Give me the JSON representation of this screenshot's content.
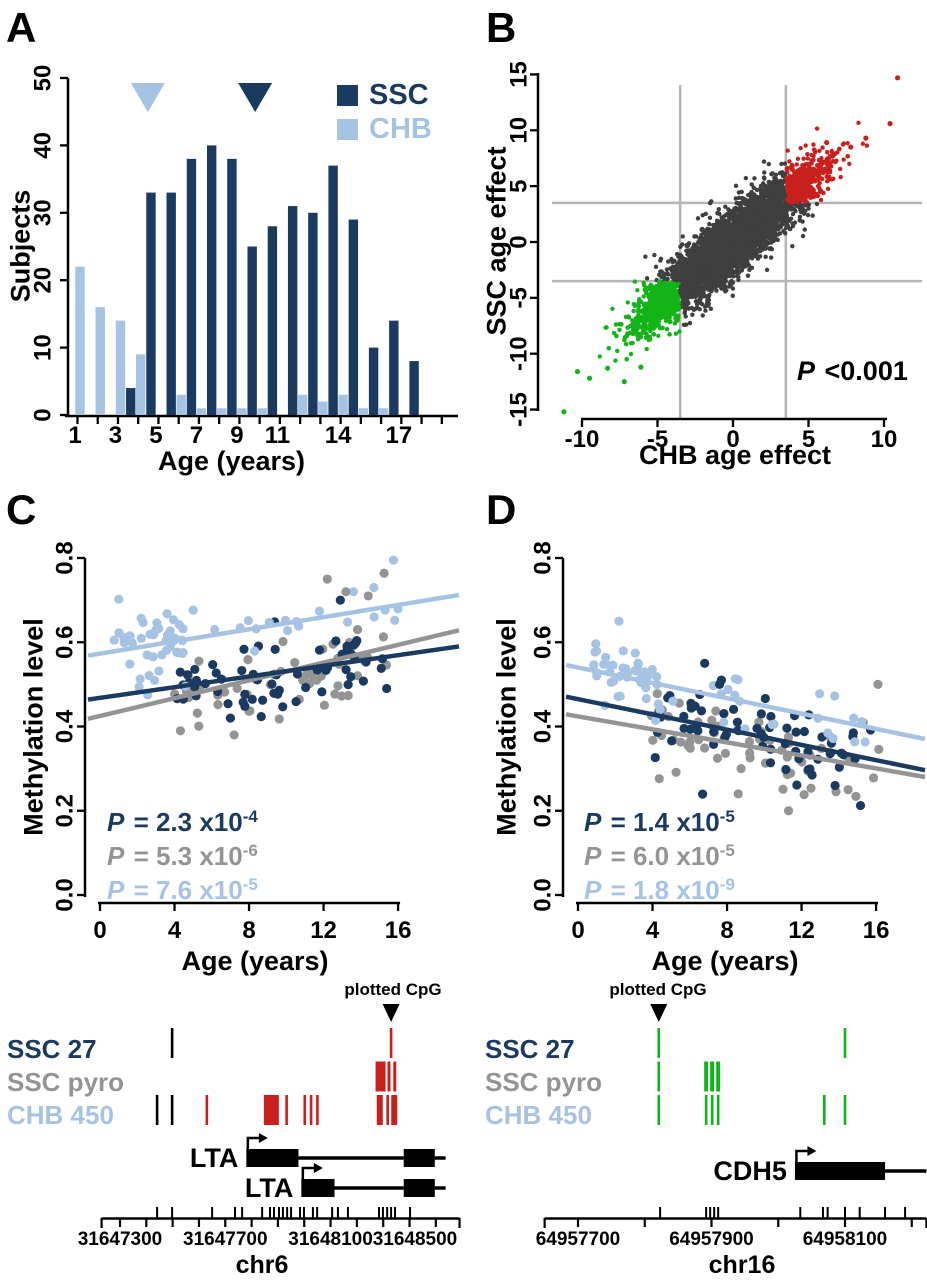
{
  "colors": {
    "navy": "#1b3a5f",
    "lightblue": "#a6c3e4",
    "gray": "#949494",
    "cloud": "#3f3f3f",
    "red": "#c9201e",
    "green": "#12b417",
    "grid": "#b5b5b5",
    "black": "#000000"
  },
  "panel_letters": {
    "A": "A",
    "B": "B",
    "C": "C",
    "D": "D"
  },
  "chart_data": [
    {
      "type": "bar",
      "panel": "A",
      "xlabel": "Age (years)",
      "ylabel": "Subjects",
      "ylim": [
        0,
        50
      ],
      "yticks": [
        0,
        10,
        20,
        30,
        40,
        50
      ],
      "categories": [
        1,
        2,
        3,
        4,
        5,
        6,
        7,
        8,
        9,
        10,
        11,
        12,
        13,
        14,
        15,
        16,
        17,
        18
      ],
      "xtick_labels": [
        [
          1,
          "1"
        ],
        [
          3,
          "3"
        ],
        [
          5,
          "5"
        ],
        [
          7,
          "7"
        ],
        [
          9,
          "9"
        ],
        [
          11,
          "11"
        ],
        [
          14,
          "14"
        ],
        [
          17,
          "17"
        ]
      ],
      "series": [
        {
          "name": "SSC",
          "color": "navy",
          "values": [
            0,
            0,
            0,
            4,
            33,
            33,
            38,
            40,
            38,
            25,
            28,
            31,
            30,
            37,
            29,
            10,
            14,
            8
          ]
        },
        {
          "name": "CHB",
          "color": "lightblue",
          "values": [
            22,
            16,
            14,
            9,
            0,
            3,
            1,
            1,
            1,
            1,
            0,
            3,
            2,
            3,
            1,
            1,
            0,
            0
          ]
        }
      ],
      "mean_markers": [
        {
          "age": 4.6,
          "color": "lightblue"
        },
        {
          "age": 9.9,
          "color": "navy"
        }
      ],
      "legend": [
        {
          "label": "SSC",
          "color": "navy"
        },
        {
          "label": "CHB",
          "color": "lightblue"
        }
      ]
    },
    {
      "type": "scatter",
      "panel": "B",
      "xlabel": "CHB age effect",
      "ylabel": "SSC age effect",
      "xlim": [
        -11.5,
        11
      ],
      "ylim": [
        -16,
        15.5
      ],
      "xticks": [
        -10,
        -5,
        0,
        5,
        10
      ],
      "yticks": [
        -15,
        -10,
        -5,
        0,
        5,
        10,
        15
      ],
      "threshold": 3.5,
      "annotation": {
        "p": "P",
        "text": " <0.001"
      },
      "cloud": {
        "seed": 20,
        "n": 4200,
        "t_sd": 2.7,
        "u_sd": 0.93,
        "xt": 0.93,
        "xu": -0.33,
        "yt": 1.06,
        "yu": 1.22
      },
      "green_extra": {
        "seed": 21,
        "n": 430,
        "mu": 3.9,
        "spread": 1.55,
        "d_sd": 0.75
      },
      "red_extra": {
        "seed": 22,
        "n": 235,
        "mu": 3.9,
        "spread": 1.2,
        "d_sd": 0.7
      },
      "extreme_red": [
        [
          10.9,
          14.7
        ],
        [
          10.4,
          10.6
        ],
        [
          8.8,
          9.3
        ],
        [
          7.8,
          8.5
        ],
        [
          6.2,
          8.9
        ]
      ],
      "extreme_green": [
        [
          -11.2,
          -15.2
        ],
        [
          -10.3,
          -11.6
        ],
        [
          -9.5,
          -12.2
        ],
        [
          -8.3,
          -11.3
        ],
        [
          -7.2,
          -12.5
        ],
        [
          -6.1,
          -11.2
        ]
      ]
    },
    {
      "type": "scatter-regression",
      "panel": "C",
      "xlabel": "Age (years)",
      "ylabel": "Methylation level",
      "xlim": [
        -0.7,
        19.2
      ],
      "ylim": [
        0,
        0.8
      ],
      "xticks": [
        0,
        4,
        8,
        12,
        16
      ],
      "ytick_labels": [
        "0.0",
        "0.2",
        "0.4",
        "0.6",
        "0.8"
      ],
      "series": [
        {
          "name": "SSC 27",
          "color": "navy",
          "line": {
            "y_at_0": 0.468,
            "y_at_18": 0.582
          },
          "points": [
            {
              "n": 62,
              "amin": 3.9,
              "amax": 15.6,
              "sd": 0.042,
              "seed": 31
            }
          ]
        },
        {
          "name": "SSC pyro",
          "color": "gray",
          "line": {
            "y_at_0": 0.425,
            "y_at_18": 0.615
          },
          "points": [
            {
              "n": 56,
              "amin": 3.9,
              "amax": 15.4,
              "sd": 0.048,
              "seed": 32
            }
          ]
        },
        {
          "name": "CHB 450",
          "color": "lightblue",
          "line": {
            "y_at_0": 0.573,
            "y_at_18": 0.703
          },
          "points": [
            {
              "n": 44,
              "amin": 0.7,
              "amax": 4.6,
              "sd": 0.05,
              "seed": 33
            },
            {
              "n": 17,
              "amin": 4.8,
              "amax": 16.3,
              "sd": 0.034,
              "seed": 34
            }
          ]
        }
      ],
      "outliers": [
        {
          "c": "lightblue",
          "x": 15.75,
          "y": 0.795
        },
        {
          "c": "lightblue",
          "x": 13.6,
          "y": 0.72
        },
        {
          "c": "lightblue",
          "x": 14.7,
          "y": 0.73
        },
        {
          "c": "gray",
          "x": 12.2,
          "y": 0.75
        },
        {
          "c": "gray",
          "x": 13.2,
          "y": 0.72
        },
        {
          "c": "gray",
          "x": 14.4,
          "y": 0.71
        },
        {
          "c": "navy",
          "x": 12.9,
          "y": 0.7
        },
        {
          "c": "gray",
          "x": 7.2,
          "y": 0.38
        },
        {
          "c": "navy",
          "x": 7.0,
          "y": 0.42
        }
      ],
      "pvalues": [
        {
          "color": "navy",
          "p": "P",
          "text": " = 2.3 x10",
          "exp": "-4"
        },
        {
          "color": "gray",
          "p": "P",
          "text": " = 5.3 x10",
          "exp": "-6"
        },
        {
          "color": "lightblue",
          "p": "P",
          "text": " = 7.6 x10",
          "exp": "-5"
        }
      ]
    },
    {
      "type": "scatter-regression",
      "panel": "D",
      "xlabel": "Age (years)",
      "ylabel": "Methylation level",
      "xlim": [
        -0.7,
        18.7
      ],
      "ylim": [
        0,
        0.8
      ],
      "xticks": [
        0,
        4,
        8,
        12,
        16
      ],
      "ytick_labels": [
        "0.0",
        "0.2",
        "0.4",
        "0.6",
        "0.8"
      ],
      "series": [
        {
          "name": "SSC 27",
          "color": "navy",
          "line": {
            "y_at_0": 0.465,
            "y_at_18": 0.302
          },
          "points": [
            {
              "n": 64,
              "amin": 3.9,
              "amax": 15.8,
              "sd": 0.045,
              "seed": 41
            }
          ]
        },
        {
          "name": "SSC pyro",
          "color": "gray",
          "line": {
            "y_at_0": 0.424,
            "y_at_18": 0.285
          },
          "points": [
            {
              "n": 58,
              "amin": 3.9,
              "amax": 16.2,
              "sd": 0.05,
              "seed": 42
            }
          ]
        },
        {
          "name": "CHB 450",
          "color": "lightblue",
          "line": {
            "y_at_0": 0.54,
            "y_at_18": 0.376
          },
          "points": [
            {
              "n": 42,
              "amin": 0.8,
              "amax": 4.4,
              "sd": 0.038,
              "seed": 43
            },
            {
              "n": 20,
              "amin": 5.0,
              "amax": 15.5,
              "sd": 0.035,
              "seed": 44
            }
          ]
        }
      ],
      "outliers": [
        {
          "c": "lightblue",
          "x": 2.2,
          "y": 0.65
        },
        {
          "c": "navy",
          "x": 6.8,
          "y": 0.55
        },
        {
          "c": "navy",
          "x": 7.6,
          "y": 0.5
        },
        {
          "c": "gray",
          "x": 8.6,
          "y": 0.24
        },
        {
          "c": "gray",
          "x": 11.3,
          "y": 0.2
        },
        {
          "c": "gray",
          "x": 16.1,
          "y": 0.5
        },
        {
          "c": "navy",
          "x": 13.8,
          "y": 0.26
        },
        {
          "c": "gray",
          "x": 14.5,
          "y": 0.25
        },
        {
          "c": "lightblue",
          "x": 14.8,
          "y": 0.42
        }
      ],
      "pvalues": [
        {
          "color": "navy",
          "p": "P",
          "text": " = 1.4 x10",
          "exp": "-5"
        },
        {
          "color": "gray",
          "p": "P",
          "text": " = 6.0 x10",
          "exp": "-5"
        },
        {
          "color": "lightblue",
          "p": "P",
          "text": " = 1.8 x10",
          "exp": "-9"
        }
      ]
    },
    {
      "type": "genome-track",
      "chrom": "chr6",
      "plotted_cpg_label": "plotted CpG",
      "plotted_cpg_bp": 31648330,
      "row_labels": [
        {
          "text": "SSC 27",
          "color": "navy"
        },
        {
          "text": "SSC pyro",
          "color": "gray"
        },
        {
          "text": "CHB 450",
          "color": "lightblue"
        }
      ],
      "axis": {
        "start": 31647230,
        "end": 31648590,
        "tick_start": 31647300,
        "tick_end": 31648500,
        "tick_step": 100,
        "labels": [
          "31647300",
          "31647700",
          "31648100",
          "31648500"
        ],
        "label_bps": [
          31647300,
          31647700,
          31648100,
          31648500
        ]
      },
      "rows": [
        {
          "ticks": [
            {
              "bp": 31647498,
              "c": "black"
            },
            {
              "bp": 31648330,
              "c": "red"
            }
          ]
        },
        {
          "ticks": [
            {
              "bp": 31648290,
              "c": "red",
              "w": 10
            },
            {
              "bp": 31648322,
              "c": "red",
              "w": 3
            },
            {
              "bp": 31648344,
              "c": "red",
              "w": 3
            }
          ]
        },
        {
          "ticks": [
            {
              "bp": 31647441,
              "c": "black"
            },
            {
              "bp": 31647498,
              "c": "black"
            },
            {
              "bp": 31647630,
              "c": "red"
            },
            {
              "bp": 31647875,
              "c": "red",
              "w": 15
            },
            {
              "bp": 31647933,
              "c": "red"
            },
            {
              "bp": 31648002,
              "c": "red"
            },
            {
              "bp": 31648026,
              "c": "red"
            },
            {
              "bp": 31648050,
              "c": "red"
            },
            {
              "bp": 31648287,
              "c": "red",
              "w": 6
            },
            {
              "bp": 31648317,
              "c": "red"
            },
            {
              "bp": 31648342,
              "c": "red",
              "w": 6
            }
          ]
        }
      ],
      "cpg_ticks": [
        31647441,
        31647498,
        31647650,
        31647737,
        31647764,
        31647840,
        31647870,
        31647885,
        31647904,
        31647919,
        31647935,
        31647950,
        31647984,
        31647999,
        31648033,
        31648049,
        31648106,
        31648128,
        31648166,
        31648284,
        31648299,
        31648315,
        31648330,
        31648345,
        31648402
      ],
      "genes": [
        {
          "name": "LTA",
          "row": 0,
          "tss": 31647780,
          "exons": [
            [
              31647780,
              31647978
            ],
            [
              31648378,
              31648496
            ]
          ],
          "end": 31648537
        },
        {
          "name": "LTA",
          "row": 1,
          "tss": 31647989,
          "exons": [
            [
              31647989,
              31648115
            ],
            [
              31648378,
              31648496
            ]
          ],
          "end": 31648537
        }
      ]
    },
    {
      "type": "genome-track",
      "chrom": "chr16",
      "plotted_cpg_label": "plotted CpG",
      "plotted_cpg_bp": 64957821,
      "row_labels": [
        {
          "text": "SSC 27",
          "color": "navy"
        },
        {
          "text": "SSC pyro",
          "color": "gray"
        },
        {
          "text": "CHB 450",
          "color": "lightblue"
        }
      ],
      "axis": {
        "start": 64957650,
        "end": 64958222,
        "tick_start": 64957700,
        "tick_end": 64958200,
        "tick_step": 100,
        "labels": [
          "64957700",
          "64957900",
          "64958100"
        ],
        "label_bps": [
          64957700,
          64957900,
          64958100
        ]
      },
      "rows": [
        {
          "ticks": [
            {
              "bp": 64957821,
              "c": "green"
            },
            {
              "bp": 64958100,
              "c": "green"
            }
          ]
        },
        {
          "ticks": [
            {
              "bp": 64957821,
              "c": "green"
            },
            {
              "bp": 64957892,
              "c": "green",
              "w": 4
            },
            {
              "bp": 64957901,
              "c": "green",
              "w": 4
            },
            {
              "bp": 64957910,
              "c": "green",
              "w": 4
            }
          ]
        },
        {
          "ticks": [
            {
              "bp": 64957821,
              "c": "green"
            },
            {
              "bp": 64957892,
              "c": "green"
            },
            {
              "bp": 64957901,
              "c": "green"
            },
            {
              "bp": 64957910,
              "c": "green"
            },
            {
              "bp": 64958069,
              "c": "green"
            },
            {
              "bp": 64958100,
              "c": "green"
            }
          ]
        }
      ],
      "cpg_ticks": [
        64957823,
        64957892,
        64957898,
        64957904,
        64957910,
        64958033,
        64958067,
        64958074,
        64958100,
        64958122,
        64958160,
        64958190
      ],
      "genes": [
        {
          "name": "CDH5",
          "row": 0,
          "tss": 64958025,
          "exons": [
            [
              64958025,
              64958160
            ]
          ],
          "end": 64958222
        }
      ]
    }
  ]
}
